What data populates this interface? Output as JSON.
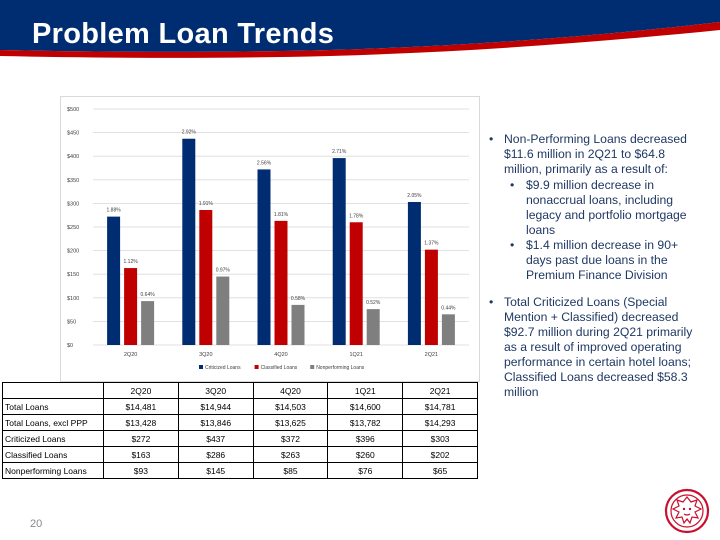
{
  "header": {
    "title": "Problem Loan Trends",
    "bg_color": "#002d72",
    "accent_color": "#c00000"
  },
  "chart_data": {
    "type": "bar",
    "categories": [
      "2Q20",
      "3Q20",
      "4Q20",
      "1Q21",
      "2Q21"
    ],
    "series": [
      {
        "name": "Criticized Loans",
        "color": "#002d72",
        "values": [
          272,
          437,
          372,
          396,
          303
        ],
        "labels": [
          "1.88%",
          "2.92%",
          "2.56%",
          "2.71%",
          "2.05%"
        ]
      },
      {
        "name": "Classified Loans",
        "color": "#c00000",
        "values": [
          163,
          286,
          263,
          260,
          202
        ],
        "labels": [
          "1.12%",
          "1.91%",
          "1.81%",
          "1.78%",
          "1.37%"
        ]
      },
      {
        "name": "Nonperforming Loans",
        "color": "#7f7f7f",
        "values": [
          93,
          145,
          85,
          76,
          65
        ],
        "labels": [
          "0.64%",
          "0.97%",
          "0.58%",
          "0.52%",
          "0.44%"
        ]
      }
    ],
    "yticks": [
      "$0",
      "$50",
      "$100",
      "$150",
      "$200",
      "$250",
      "$300",
      "$350",
      "$400",
      "$450",
      "$500"
    ],
    "ylim": [
      0,
      500
    ],
    "grid": true,
    "legend": "bottom"
  },
  "bullets": [
    {
      "text": "Non-Performing Loans decreased $11.6 million in 2Q21 to $64.8 million, primarily as a result of:",
      "sub": [
        "$9.9 million decrease in nonaccrual loans, including legacy and portfolio mortgage loans",
        "$1.4 million decrease in 90+ days past due loans in the Premium Finance Division"
      ]
    },
    {
      "text": "Total Criticized Loans (Special Mention + Classified) decreased $92.7 million during 2Q21 primarily as a result of improved operating performance in certain hotel loans; Classified Loans decreased $58.3 million",
      "sub": []
    }
  ],
  "table": {
    "headers": [
      "",
      "2Q20",
      "3Q20",
      "4Q20",
      "1Q21",
      "2Q21"
    ],
    "rows": [
      [
        "Total Loans",
        "$14,481",
        "$14,944",
        "$14,503",
        "$14,600",
        "$14,781"
      ],
      [
        "Total Loans, excl PPP",
        "$13,428",
        "$13,846",
        "$13,625",
        "$13,782",
        "$14,293"
      ],
      [
        "Criticized Loans",
        "$272",
        "$437",
        "$372",
        "$396",
        "$303"
      ],
      [
        "Classified Loans",
        "$163",
        "$286",
        "$263",
        "$260",
        "$202"
      ],
      [
        "Nonperforming Loans",
        "$93",
        "$145",
        "$85",
        "$76",
        "$65"
      ]
    ]
  },
  "footer": {
    "page_number": "20"
  },
  "logo": {
    "icon": "lion-head-icon",
    "color": "#c8102e"
  }
}
